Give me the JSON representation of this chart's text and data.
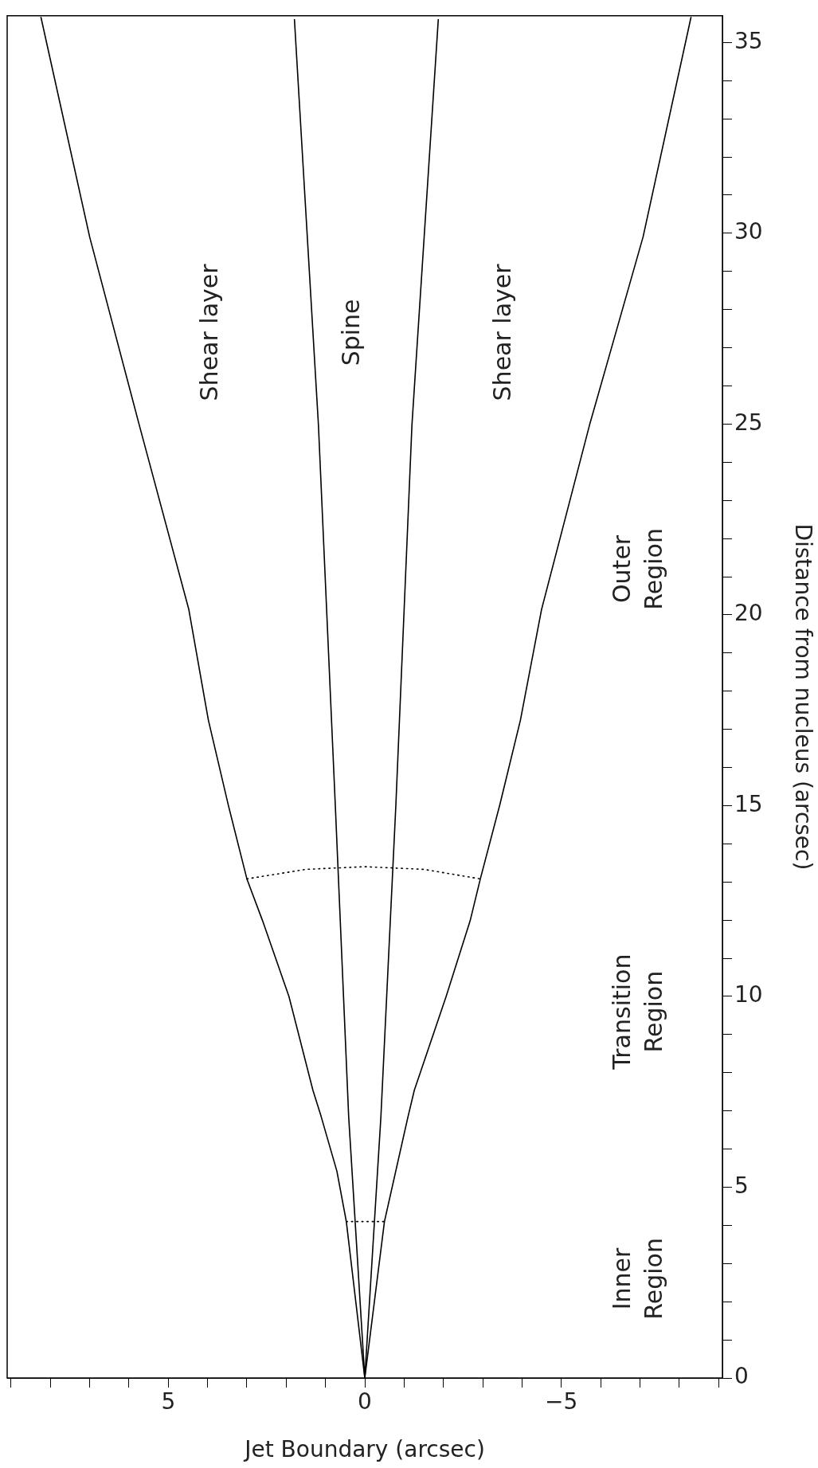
{
  "chart_data": {
    "type": "line",
    "xlabel": "Jet Boundary (arcsec)",
    "ylabel": "Distance from nucleus (arcsec)",
    "xlim": [
      9.1,
      -9.1
    ],
    "ylim": [
      0,
      35.7
    ],
    "xticks": [
      {
        "value": 9,
        "label": null
      },
      {
        "value": 8,
        "label": null
      },
      {
        "value": 7,
        "label": null
      },
      {
        "value": 6,
        "label": null
      },
      5,
      {
        "value": 4,
        "label": null
      },
      {
        "value": 3,
        "label": null
      },
      {
        "value": 2,
        "label": null
      },
      {
        "value": 1,
        "label": null
      },
      0,
      {
        "value": -1,
        "label": null
      },
      {
        "value": -2,
        "label": null
      },
      {
        "value": -3,
        "label": null
      },
      {
        "value": -4,
        "label": null
      },
      {
        "value": -5,
        "label": "−5"
      },
      {
        "value": -6,
        "label": null
      },
      {
        "value": -7,
        "label": null
      },
      {
        "value": -8,
        "label": null
      },
      {
        "value": -9,
        "label": null
      }
    ],
    "yticks": [
      0,
      {
        "value": 1,
        "label": null
      },
      {
        "value": 2,
        "label": null
      },
      {
        "value": 3,
        "label": null
      },
      {
        "value": 4,
        "label": null
      },
      5,
      {
        "value": 6,
        "label": null
      },
      {
        "value": 7,
        "label": null
      },
      {
        "value": 8,
        "label": null
      },
      {
        "value": 9,
        "label": null
      },
      10,
      {
        "value": 11,
        "label": null
      },
      {
        "value": 12,
        "label": null
      },
      {
        "value": 13,
        "label": null
      },
      {
        "value": 14,
        "label": null
      },
      15,
      {
        "value": 16,
        "label": null
      },
      {
        "value": 17,
        "label": null
      },
      {
        "value": 18,
        "label": null
      },
      {
        "value": 19,
        "label": null
      },
      20,
      {
        "value": 21,
        "label": null
      },
      {
        "value": 22,
        "label": null
      },
      {
        "value": 23,
        "label": null
      },
      {
        "value": 24,
        "label": null
      },
      25,
      {
        "value": 26,
        "label": null
      },
      {
        "value": 27,
        "label": null
      },
      {
        "value": 28,
        "label": null
      },
      {
        "value": 29,
        "label": null
      },
      30,
      {
        "value": 31,
        "label": null
      },
      {
        "value": 32,
        "label": null
      },
      {
        "value": 33,
        "label": null
      },
      {
        "value": 34,
        "label": null
      },
      35
    ],
    "grid": false,
    "marker": "none",
    "series": [
      {
        "color": "#000000",
        "line_style": "solid",
        "x": [
          0,
          0.47,
          0.71,
          1.11,
          1.32,
          1.93,
          2.6,
          3.0,
          3.47,
          3.98,
          4.48,
          5.74,
          7.0,
          8.24
        ],
        "values": [
          0,
          4.1,
          5.42,
          6.85,
          7.54,
          10,
          11.98,
          13.08,
          15,
          17.24,
          20.15,
          24.98,
          29.9,
          35.66
        ]
      },
      {
        "color": "#000000",
        "line_style": "solid",
        "x": [
          0,
          0.41,
          0.75,
          1.18,
          1.79
        ],
        "values": [
          0,
          6.85,
          15,
          24.98,
          35.6
        ]
      },
      {
        "color": "#000000",
        "line_style": "solid",
        "x": [
          0,
          -0.41,
          -0.79,
          -1.2,
          -1.87
        ],
        "values": [
          0,
          6.85,
          15,
          24.98,
          35.6
        ]
      },
      {
        "color": "#000000",
        "line_style": "solid",
        "x": [
          0,
          -0.5,
          -1.1,
          -1.26,
          -2.07,
          -2.68,
          -2.94,
          -3.43,
          -3.96,
          -4.5,
          -5.72,
          -7.08,
          -8.3
        ],
        "values": [
          0,
          4.1,
          6.85,
          7.54,
          10,
          11.98,
          13.08,
          15,
          17.24,
          20.15,
          24.98,
          29.9,
          35.66
        ]
      },
      {
        "color": "#000000",
        "line_style": "dotted",
        "x": [
          0.47,
          -0.5
        ],
        "values": [
          4.1,
          4.1
        ]
      },
      {
        "color": "#000000",
        "line_style": "dotted",
        "x": [
          3.0,
          1.5,
          0,
          -1.5,
          -2.94
        ],
        "values": [
          13.08,
          13.33,
          13.4,
          13.33,
          13.08
        ]
      }
    ],
    "annotations": [
      "Shear layer",
      "Spine",
      "Shear layer",
      "Outer Region",
      "Transition Region",
      "Inner Region"
    ]
  }
}
